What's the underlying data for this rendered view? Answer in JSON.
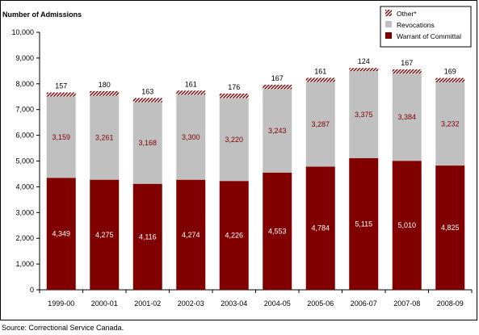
{
  "chart_data": {
    "type": "bar",
    "stacked": true,
    "title": "",
    "ylabel": "Number of Admissions",
    "xlabel": "",
    "ylim": [
      0,
      10000
    ],
    "yticks": [
      0,
      1000,
      2000,
      3000,
      4000,
      5000,
      6000,
      7000,
      8000,
      9000,
      10000
    ],
    "ytick_labels": [
      "0",
      "1,000",
      "2,000",
      "3,000",
      "4,000",
      "5,000",
      "6,000",
      "7,000",
      "8,000",
      "9,000",
      "10,000"
    ],
    "grid": false,
    "legend_position": "top-right",
    "categories": [
      "1999-00",
      "2000-01",
      "2001-02",
      "2002-03",
      "2003-04",
      "2004-05",
      "2005-06",
      "2006-07",
      "2007-08",
      "2008-09"
    ],
    "series": [
      {
        "name": "Warrant of Committal",
        "color": "#800000",
        "label_color": "#ffffff",
        "pattern": "solid",
        "values": [
          4349,
          4275,
          4116,
          4274,
          4226,
          4553,
          4784,
          5115,
          5010,
          4825
        ],
        "labels": [
          "4,349",
          "4,275",
          "4,116",
          "4,274",
          "4,226",
          "4,553",
          "4,784",
          "5,115",
          "5,010",
          "4,825"
        ]
      },
      {
        "name": "Revocations",
        "color": "#c0c0c0",
        "label_color": "#800000",
        "pattern": "solid",
        "values": [
          3159,
          3261,
          3168,
          3300,
          3220,
          3243,
          3287,
          3375,
          3384,
          3232
        ],
        "labels": [
          "3,159",
          "3,261",
          "3,168",
          "3,300",
          "3,220",
          "3,243",
          "3,287",
          "3,375",
          "3,384",
          "3,232"
        ]
      },
      {
        "name": "Other*",
        "color": "#800000",
        "label_color": "#000000",
        "pattern": "hatched",
        "values": [
          157,
          180,
          163,
          161,
          176,
          167,
          161,
          124,
          167,
          169
        ],
        "labels": [
          "157",
          "180",
          "163",
          "161",
          "176",
          "167",
          "161",
          "124",
          "167",
          "169"
        ]
      }
    ]
  },
  "source_note": "Source:  Correctional Service Canada."
}
